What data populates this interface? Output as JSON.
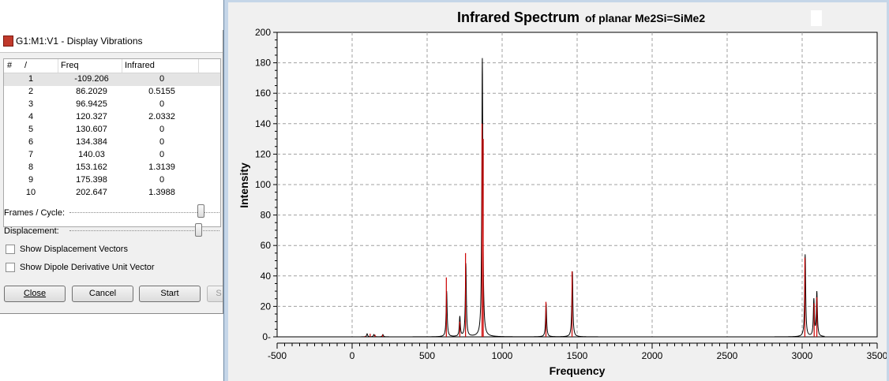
{
  "dialog": {
    "title": "G1:M1:V1 - Display Vibrations",
    "columns": [
      "#",
      "/",
      "Freq",
      "Infrared"
    ],
    "rows": [
      {
        "idx": "1",
        "freq": "-109.206",
        "ir": "0"
      },
      {
        "idx": "2",
        "freq": "86.2029",
        "ir": "0.5155"
      },
      {
        "idx": "3",
        "freq": "96.9425",
        "ir": "0"
      },
      {
        "idx": "4",
        "freq": "120.327",
        "ir": "2.0332"
      },
      {
        "idx": "5",
        "freq": "130.607",
        "ir": "0"
      },
      {
        "idx": "6",
        "freq": "134.384",
        "ir": "0"
      },
      {
        "idx": "7",
        "freq": "140.03",
        "ir": "0"
      },
      {
        "idx": "8",
        "freq": "153.162",
        "ir": "1.3139"
      },
      {
        "idx": "9",
        "freq": "175.398",
        "ir": "0"
      },
      {
        "idx": "10",
        "freq": "202.647",
        "ir": "1.3988"
      }
    ],
    "frames_label": "Frames / Cycle:",
    "displacement_label": "Displacement:",
    "show_displacement_label": "Show Displacement Vectors",
    "show_dipole_label": "Show Dipole Derivative Unit Vector",
    "close_label": "Close",
    "cancel_label": "Cancel",
    "start_label": "Start",
    "partial_button_label": "S"
  },
  "chart_data": {
    "type": "line",
    "title": "Infrared Spectrum",
    "subtitle": "of planar Me2Si=SiMe2",
    "xlabel": "Frequency",
    "ylabel": "Intensity",
    "xlim": [
      -500,
      3500
    ],
    "ylim": [
      0,
      200
    ],
    "xticks": [
      -500,
      0,
      500,
      1000,
      1500,
      2000,
      2500,
      3000,
      3500
    ],
    "yticks": [
      0,
      20,
      40,
      60,
      80,
      100,
      120,
      140,
      160,
      180,
      200
    ],
    "grid": true,
    "colors": {
      "spectrum": "#000000",
      "sticks": "#cc0000",
      "grid": "#a0a0a0"
    },
    "spectrum_range": [
      -150,
      3150
    ],
    "peaks": [
      {
        "x": 100,
        "y": 2
      },
      {
        "x": 145,
        "y": 1.5
      },
      {
        "x": 205,
        "y": 1.5
      },
      {
        "x": 630,
        "y": 30
      },
      {
        "x": 718,
        "y": 13
      },
      {
        "x": 758,
        "y": 48
      },
      {
        "x": 868,
        "y": 183
      },
      {
        "x": 1293,
        "y": 22
      },
      {
        "x": 1468,
        "y": 43
      },
      {
        "x": 3020,
        "y": 54
      },
      {
        "x": 3078,
        "y": 24
      },
      {
        "x": 3098,
        "y": 29
      }
    ],
    "sticks": [
      {
        "x": 86.2029,
        "y": 0.5155
      },
      {
        "x": 120.327,
        "y": 2.0332
      },
      {
        "x": 153.162,
        "y": 1.3139
      },
      {
        "x": 202.647,
        "y": 1.3988
      },
      {
        "x": 628,
        "y": 39
      },
      {
        "x": 718,
        "y": 10
      },
      {
        "x": 756,
        "y": 55
      },
      {
        "x": 866,
        "y": 140
      },
      {
        "x": 874,
        "y": 130
      },
      {
        "x": 1292,
        "y": 23
      },
      {
        "x": 1466,
        "y": 43
      },
      {
        "x": 3018,
        "y": 52
      },
      {
        "x": 3080,
        "y": 22
      },
      {
        "x": 3098,
        "y": 26
      }
    ]
  }
}
